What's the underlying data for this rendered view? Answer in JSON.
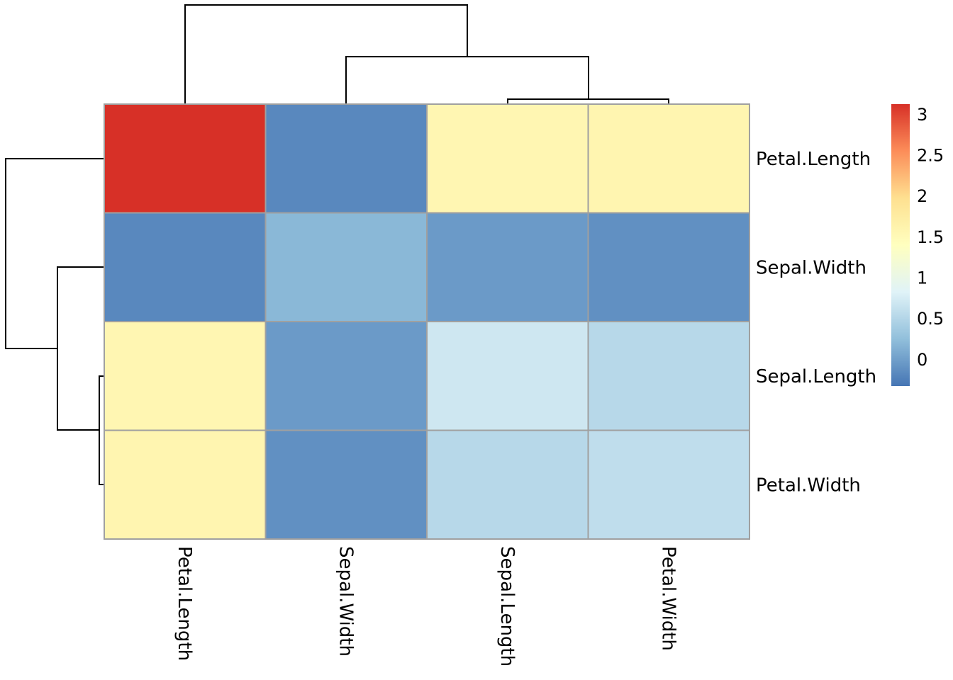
{
  "chart_data": {
    "type": "heatmap",
    "title": "",
    "row_labels": [
      "Petal.Length",
      "Sepal.Width",
      "Sepal.Length",
      "Petal.Width"
    ],
    "col_labels": [
      "Petal.Length",
      "Sepal.Width",
      "Sepal.Length",
      "Petal.Width"
    ],
    "values": [
      [
        3.12,
        -0.18,
        1.56,
        1.58
      ],
      [
        -0.18,
        0.19,
        -0.04,
        -0.12
      ],
      [
        1.56,
        -0.04,
        0.69,
        0.52
      ],
      [
        1.58,
        -0.12,
        0.52,
        0.58
      ]
    ],
    "colorbar": {
      "min": -0.33,
      "max": 3.12,
      "ticks": [
        0,
        0.5,
        1,
        1.5,
        2,
        2.5,
        3
      ],
      "tick_labels": [
        "0",
        "0.5",
        "1",
        "1.5",
        "2",
        "2.5",
        "3"
      ],
      "colors": [
        "#4575b4",
        "#91bfdb",
        "#e0f3f8",
        "#ffffbf",
        "#fee090",
        "#fc8d59",
        "#d73027"
      ]
    },
    "row_dendrogram": true,
    "col_dendrogram": true,
    "cell_border_color": "#a0a0a0"
  }
}
